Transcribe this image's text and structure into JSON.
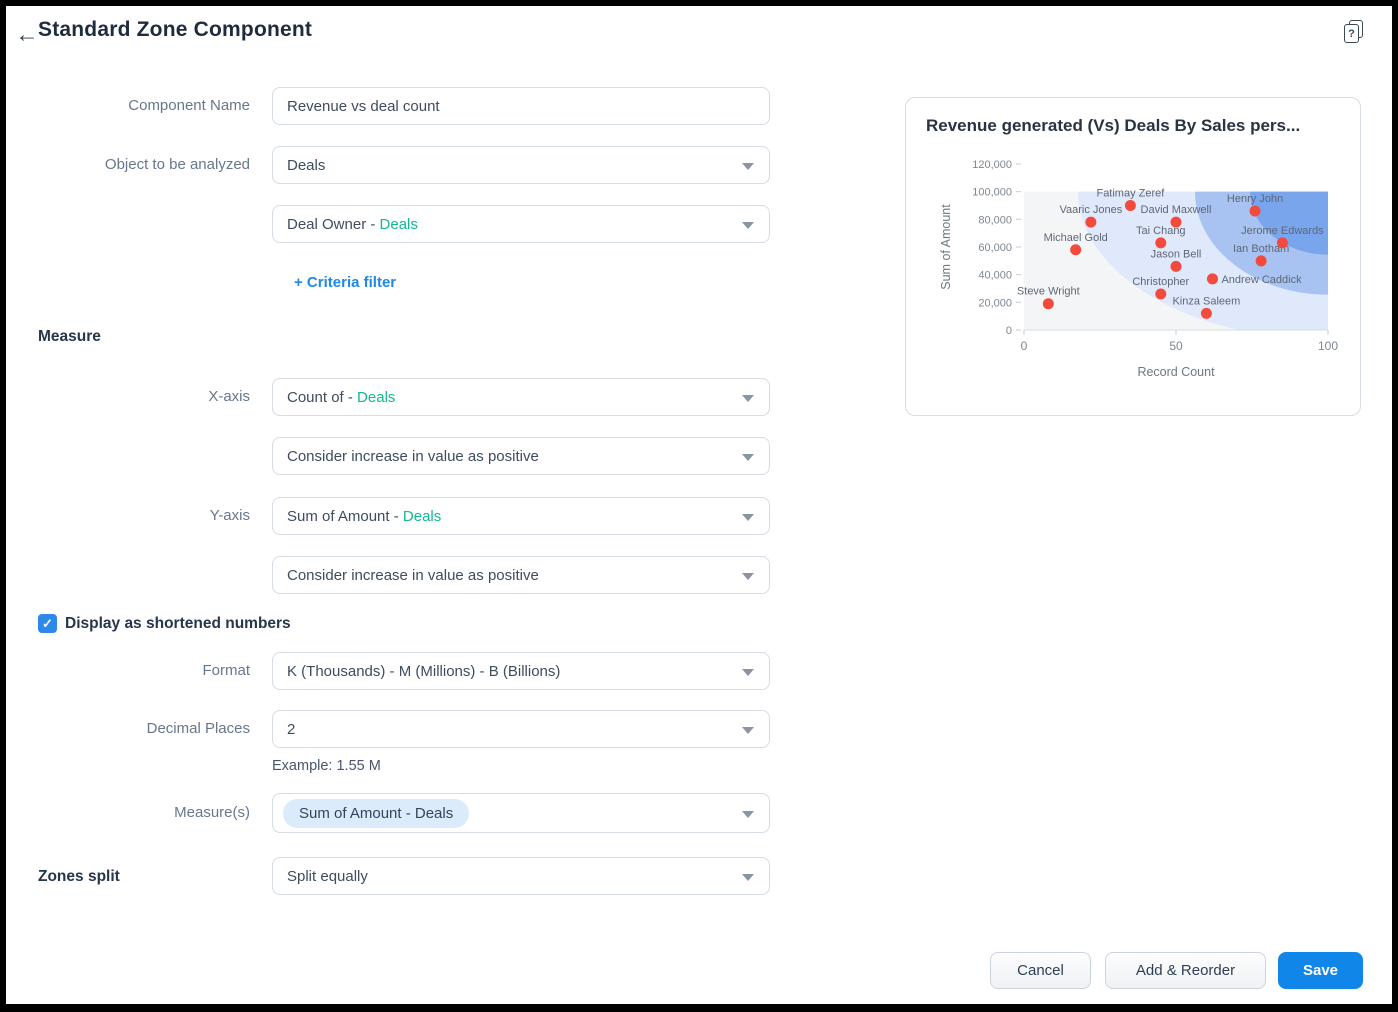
{
  "header": {
    "title": "Standard Zone Component",
    "back_icon": "←",
    "help_glyph": "?"
  },
  "form": {
    "component_name": {
      "label": "Component Name",
      "value": "Revenue vs deal count"
    },
    "object_field": {
      "label": "Object to be analyzed",
      "value": "Deals"
    },
    "dimension_field": {
      "value_prefix": "Deal Owner - ",
      "value_suffix": "Deals"
    },
    "criteria_filter_label": "+ Criteria filter",
    "measure_heading": "Measure",
    "x_axis": {
      "label": "X-axis",
      "value_prefix": "Count of - ",
      "value_suffix": "Deals",
      "direction": "Consider increase in value as positive"
    },
    "y_axis": {
      "label": "Y-axis",
      "value_prefix": "Sum of Amount - ",
      "value_suffix": "Deals",
      "direction": "Consider increase in value as positive"
    },
    "shortened_numbers": {
      "label": "Display as shortened numbers",
      "checked": true,
      "check_glyph": "✓"
    },
    "format": {
      "label": "Format",
      "value": "K (Thousands) - M (Millions) - B (Billions)"
    },
    "decimal_places": {
      "label": "Decimal Places",
      "value": "2",
      "example": "Example: 1.55 M"
    },
    "measures": {
      "label": "Measure(s)",
      "chip": "Sum of Amount - Deals"
    },
    "zones_split": {
      "label": "Zones split",
      "value": "Split equally"
    }
  },
  "footer": {
    "cancel": "Cancel",
    "add_reorder": "Add & Reorder",
    "save": "Save"
  },
  "colors": {
    "accent_blue": "#1087e8",
    "link_blue": "#2089e5",
    "teal": "#10b992",
    "checkbox_blue": "#2d88ea"
  },
  "chart_data": {
    "type": "scatter",
    "title": "Revenue generated (Vs) Deals By Sales pers...",
    "xlabel": "Record Count",
    "ylabel": "Sum of Amount",
    "xlim": [
      0,
      100
    ],
    "ylim": [
      0,
      120000
    ],
    "x_ticks": [
      0,
      50,
      100
    ],
    "y_ticks": [
      0,
      20000,
      40000,
      60000,
      80000,
      100000,
      120000
    ],
    "zones_top": 100000,
    "grid": false,
    "legend": false,
    "point_color": "#f24a3c",
    "zone_colors": [
      "#f4f5f6",
      "#dfe9fb",
      "#a8c3f1",
      "#79a5ec"
    ],
    "points": [
      {
        "name": "Steve Wright",
        "x": 8,
        "y": 19000
      },
      {
        "name": "Michael Gold",
        "x": 17,
        "y": 58000
      },
      {
        "name": "Vaaric Jones",
        "x": 22,
        "y": 78000
      },
      {
        "name": "Fatimay Zeref",
        "x": 35,
        "y": 90000
      },
      {
        "name": "Tai Chang",
        "x": 45,
        "y": 63000
      },
      {
        "name": "David Maxwell",
        "x": 50,
        "y": 78000
      },
      {
        "name": "Jason Bell",
        "x": 50,
        "y": 46000
      },
      {
        "name": "Christopher",
        "x": 45,
        "y": 26000
      },
      {
        "name": "Kinza Saleem",
        "x": 60,
        "y": 12000
      },
      {
        "name": "Andrew Caddick",
        "x": 62,
        "y": 37000,
        "label_pos": "right"
      },
      {
        "name": "Henry John",
        "x": 76,
        "y": 86000
      },
      {
        "name": "Ian Botham",
        "x": 78,
        "y": 50000
      },
      {
        "name": "Jerome Edwards",
        "x": 85,
        "y": 63000
      }
    ]
  }
}
